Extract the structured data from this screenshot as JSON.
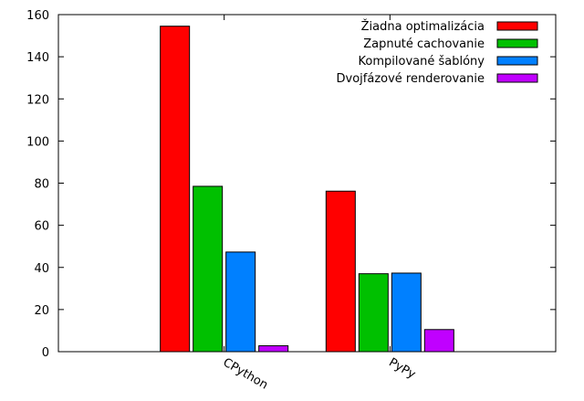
{
  "chart_data": {
    "type": "bar",
    "title": "",
    "xlabel": "",
    "ylabel": "",
    "ylim": [
      0,
      160
    ],
    "yticks": [
      0,
      20,
      40,
      60,
      80,
      100,
      120,
      140,
      160
    ],
    "categories": [
      "CPython",
      "PyPy"
    ],
    "series": [
      {
        "name": "Žiadna optimalizácia",
        "color": "#ff0000",
        "values": [
          154.5,
          76.2
        ]
      },
      {
        "name": "Zapnuté cachovanie",
        "color": "#00c000",
        "values": [
          78.5,
          37.0
        ]
      },
      {
        "name": "Kompilované šablóny",
        "color": "#0080ff",
        "values": [
          47.3,
          37.3
        ]
      },
      {
        "name": "Dvojfázové renderovanie",
        "color": "#c000ff",
        "values": [
          2.8,
          10.5
        ]
      }
    ],
    "legend_position": "top-right",
    "grid": false
  }
}
